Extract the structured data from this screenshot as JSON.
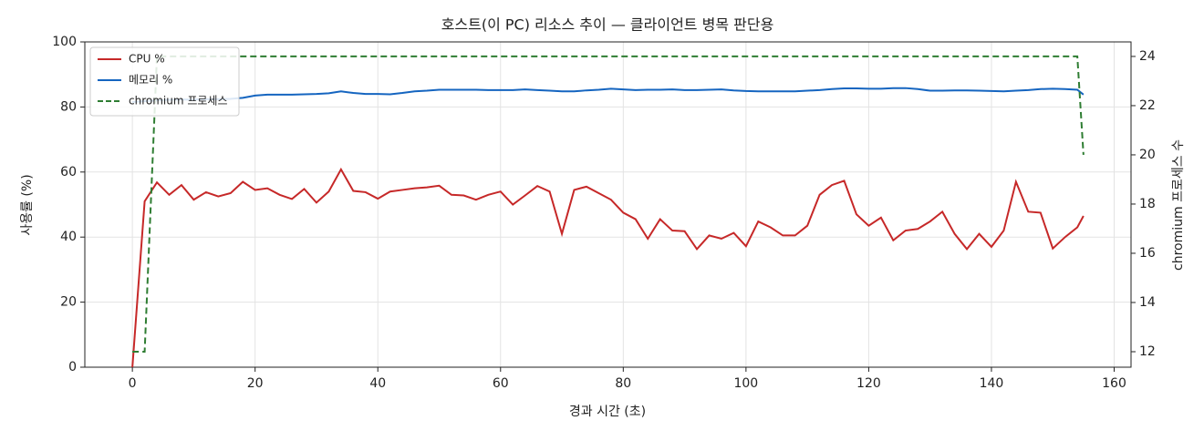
{
  "chart_data": {
    "type": "line",
    "title": "호스트(이 PC) 리소스 추이 — 클라이언트 병목 판단용",
    "x_label": "경과 시간 (초)",
    "y_label": "사용률 (%)",
    "y2_label": "chromium 프로세스 수",
    "x": [
      0,
      2,
      4,
      6,
      8,
      10,
      12,
      14,
      16,
      18,
      20,
      22,
      24,
      26,
      28,
      30,
      32,
      34,
      36,
      38,
      40,
      42,
      44,
      46,
      48,
      50,
      52,
      54,
      56,
      58,
      60,
      62,
      64,
      66,
      68,
      70,
      72,
      74,
      76,
      78,
      80,
      82,
      84,
      86,
      88,
      90,
      92,
      94,
      96,
      98,
      100,
      102,
      104,
      106,
      108,
      110,
      112,
      114,
      116,
      118,
      120,
      122,
      124,
      126,
      128,
      130,
      132,
      134,
      136,
      138,
      140,
      142,
      144,
      146,
      148,
      150,
      152,
      154,
      155
    ],
    "series": [
      {
        "name": "CPU %",
        "color": "#c62828",
        "dashed": false,
        "values": [
          0,
          51,
          56.8,
          53,
          56,
          51.5,
          53.8,
          52.5,
          53.5,
          57,
          54.5,
          55,
          53,
          51.7,
          54.8,
          50.6,
          54,
          60.8,
          54.2,
          53.8,
          51.8,
          54,
          54.5,
          55,
          55.3,
          55.8,
          53,
          52.8,
          51.5,
          53,
          54,
          50,
          52.8,
          55.7,
          54,
          41,
          54.5,
          55.5,
          53.5,
          51.5,
          47.5,
          45.5,
          39.5,
          45.5,
          42,
          41.8,
          36.3,
          40.5,
          39.5,
          41.3,
          37.2,
          44.8,
          43,
          40.5,
          40.5,
          43.5,
          53,
          56,
          57.3,
          47,
          43.5,
          46,
          39,
          42,
          42.5,
          44.8,
          47.8,
          41,
          36.3,
          41,
          37,
          42,
          57,
          47.8,
          47.5,
          36.5,
          40,
          43,
          46.5
        ]
      },
      {
        "name": "메모리 %",
        "color": "#1565c0",
        "dashed": false,
        "values": [
          81.5,
          81.8,
          82,
          82.2,
          82.3,
          82.3,
          82.4,
          82.4,
          82.5,
          82.8,
          83.5,
          83.8,
          83.8,
          83.8,
          83.9,
          84,
          84.2,
          84.8,
          84.3,
          84,
          84,
          83.9,
          84.3,
          84.8,
          85,
          85.3,
          85.3,
          85.3,
          85.3,
          85.2,
          85.2,
          85.2,
          85.4,
          85.2,
          85,
          84.8,
          84.8,
          85.1,
          85.3,
          85.6,
          85.4,
          85.2,
          85.3,
          85.3,
          85.4,
          85.2,
          85.2,
          85.3,
          85.4,
          85.1,
          84.9,
          84.8,
          84.8,
          84.8,
          84.8,
          85,
          85.2,
          85.5,
          85.7,
          85.7,
          85.6,
          85.6,
          85.8,
          85.8,
          85.5,
          85,
          85,
          85.1,
          85.1,
          85,
          84.9,
          84.8,
          85,
          85.2,
          85.5,
          85.6,
          85.5,
          85.3,
          83.8
        ]
      },
      {
        "name": "chromium 프로세스",
        "color": "#2e7d32",
        "dashed": true,
        "axis": "y2",
        "values": [
          12,
          12,
          24,
          24,
          24,
          24,
          24,
          24,
          24,
          24,
          24,
          24,
          24,
          24,
          24,
          24,
          24,
          24,
          24,
          24,
          24,
          24,
          24,
          24,
          24,
          24,
          24,
          24,
          24,
          24,
          24,
          24,
          24,
          24,
          24,
          24,
          24,
          24,
          24,
          24,
          24,
          24,
          24,
          24,
          24,
          24,
          24,
          24,
          24,
          24,
          24,
          24,
          24,
          24,
          24,
          24,
          24,
          24,
          24,
          24,
          24,
          24,
          24,
          24,
          24,
          24,
          24,
          24,
          24,
          24,
          24,
          24,
          24,
          24,
          24,
          24,
          24,
          24,
          20
        ]
      }
    ],
    "xlim": [
      -7.75,
      162.75
    ],
    "xticks": [
      0,
      20,
      40,
      60,
      80,
      100,
      120,
      140,
      160
    ],
    "ylim": [
      0,
      100
    ],
    "yticks": [
      0,
      20,
      40,
      60,
      80,
      100
    ],
    "y2lim": [
      11.37,
      24.59
    ],
    "y2ticks": [
      12,
      14,
      16,
      18,
      20,
      22,
      24
    ],
    "grid": true,
    "legend": "upper left"
  }
}
